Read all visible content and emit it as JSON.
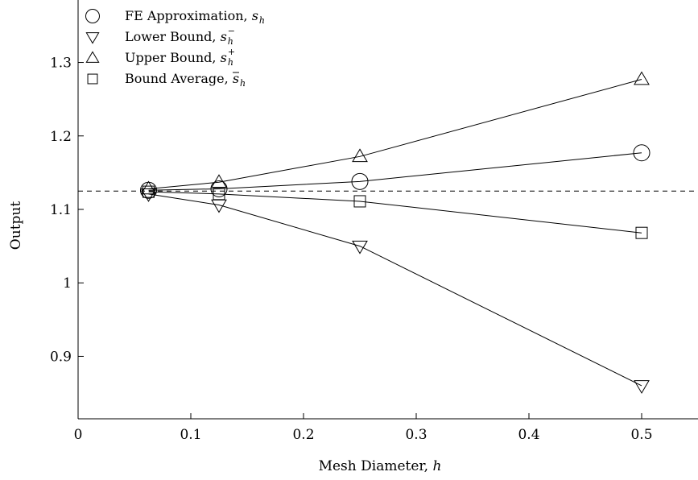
{
  "chart_data": {
    "type": "line",
    "xlabel": "Mesh Diameter, ",
    "xlabel_symbol": "h",
    "ylabel": "Output",
    "xlim": [
      0,
      0.55
    ],
    "ylim": [
      0.815,
      1.385
    ],
    "x_ticks": [
      0,
      0.1,
      0.2,
      0.3,
      0.4,
      0.5
    ],
    "x_tick_labels": [
      "0",
      "0.1",
      "0.2",
      "0.3",
      "0.4",
      "0.5"
    ],
    "y_ticks": [
      0.9,
      1.0,
      1.1,
      1.2,
      1.3
    ],
    "y_tick_labels": [
      "0.9",
      "1",
      "1.1",
      "1.2",
      "1.3"
    ],
    "grid": false,
    "legend_position": "top-left",
    "reference_line": {
      "y": 1.125,
      "style": "dashed"
    },
    "x": [
      0.0625,
      0.125,
      0.25,
      0.5
    ],
    "series": [
      {
        "key": "fe",
        "label": "FE Approximation, ",
        "symbol": "s",
        "sub": "h",
        "sup": "",
        "bar": false,
        "marker": "circle",
        "values": [
          1.126,
          1.128,
          1.138,
          1.177
        ]
      },
      {
        "key": "lower",
        "label": "Lower Bound, ",
        "symbol": "s",
        "sub": "h",
        "sup": "−",
        "bar": false,
        "marker": "triangle-down",
        "values": [
          1.121,
          1.106,
          1.05,
          0.86
        ]
      },
      {
        "key": "upper",
        "label": "Upper Bound, ",
        "symbol": "s",
        "sub": "h",
        "sup": "+",
        "bar": false,
        "marker": "triangle-up",
        "values": [
          1.128,
          1.137,
          1.172,
          1.277
        ]
      },
      {
        "key": "avg",
        "label": "Bound Average, ",
        "symbol": "s",
        "sub": "h",
        "sup": "",
        "bar": true,
        "marker": "square",
        "values": [
          1.124,
          1.121,
          1.111,
          1.068
        ]
      }
    ]
  }
}
